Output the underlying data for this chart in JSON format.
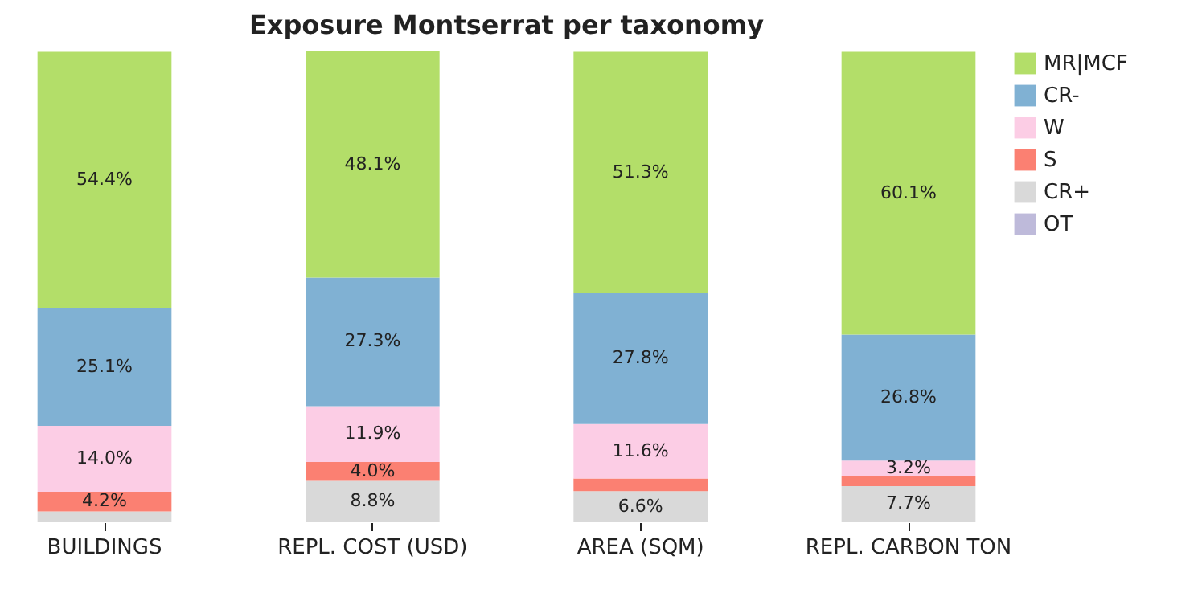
{
  "chart_data": {
    "type": "bar",
    "title": "Exposure Montserrat per taxonomy",
    "stacked": true,
    "legend": "top right",
    "grid": false,
    "categories": [
      "BUILDINGS",
      "REPL. COST (USD)",
      "AREA (SQM)",
      "REPL. CARBON TON"
    ],
    "series": [
      {
        "name": "OT",
        "color": "#bebada",
        "values": [
          0,
          0,
          0,
          0
        ],
        "value_labels": [
          null,
          null,
          null,
          null
        ]
      },
      {
        "name": "CR+",
        "color": "#d9d9d9",
        "values": [
          2.3,
          8.8,
          6.6,
          7.7
        ],
        "value_labels": [
          null,
          "8.8%",
          "6.6%",
          "7.7%"
        ]
      },
      {
        "name": "S",
        "color": "#fb8072",
        "values": [
          4.2,
          4.0,
          2.7,
          2.2
        ],
        "value_labels": [
          "4.2%",
          "4.0%",
          null,
          null
        ]
      },
      {
        "name": "W",
        "color": "#fccde5",
        "values": [
          14.0,
          11.9,
          11.6,
          3.2
        ],
        "value_labels": [
          "14.0%",
          "11.9%",
          "11.6%",
          "3.2%"
        ]
      },
      {
        "name": "CR-",
        "color": "#80b1d3",
        "values": [
          25.1,
          27.3,
          27.8,
          26.8
        ],
        "value_labels": [
          "25.1%",
          "27.3%",
          "27.8%",
          "26.8%"
        ]
      },
      {
        "name": "MR|MCF",
        "color": "#b3de69",
        "values": [
          54.4,
          48.1,
          51.3,
          60.1
        ],
        "value_labels": [
          "54.4%",
          "48.1%",
          "51.3%",
          "60.1%"
        ]
      }
    ]
  }
}
